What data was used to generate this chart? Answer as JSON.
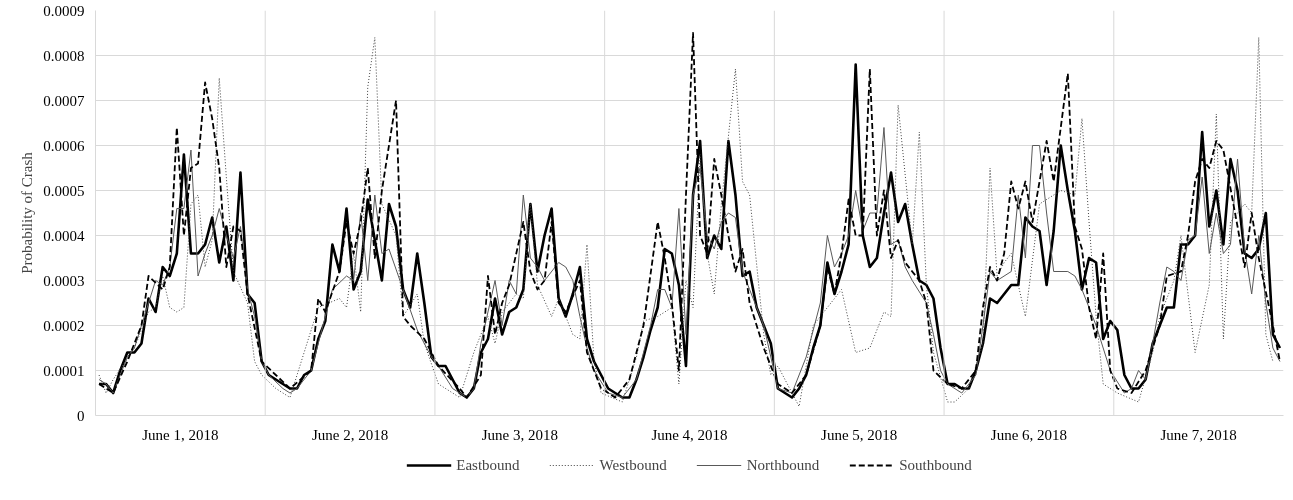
{
  "chart_data": {
    "type": "line",
    "ylabel": "Probability of Crash",
    "legend": "bottom",
    "grid": "y",
    "marker": "none",
    "xlim": [
      "2018-05-31T23:30",
      "2018-06-07T23:30"
    ],
    "xticks": [
      {
        "value": "2018-06-01T11:30",
        "label": "June 1, 2018"
      },
      {
        "value": "2018-06-02T11:30",
        "label": "June 2, 2018"
      },
      {
        "value": "2018-06-03T11:30",
        "label": "June 3, 2018"
      },
      {
        "value": "2018-06-04T11:30",
        "label": "June 4, 2018"
      },
      {
        "value": "2018-06-05T11:30",
        "label": "June 5, 2018"
      },
      {
        "value": "2018-06-06T11:30",
        "label": "June 6, 2018"
      },
      {
        "value": "2018-06-07T11:30",
        "label": "June 7, 2018"
      }
    ],
    "ylim": [
      0,
      0.0009
    ],
    "yticks": [
      0,
      0.0001,
      0.0002,
      0.0003,
      0.0004,
      0.0005,
      0.0006,
      0.0007,
      0.0008,
      0.0009
    ],
    "ref_lines": [
      {
        "axis": "x",
        "value": "2018-06-01T23:30",
        "color": "#d9d9d9"
      },
      {
        "axis": "x",
        "value": "2018-06-02T23:30",
        "color": "#d9d9d9"
      },
      {
        "axis": "x",
        "value": "2018-06-03T23:30",
        "color": "#d9d9d9"
      },
      {
        "axis": "x",
        "value": "2018-06-04T23:30",
        "color": "#d9d9d9"
      },
      {
        "axis": "x",
        "value": "2018-06-05T23:30",
        "color": "#d9d9d9"
      },
      {
        "axis": "x",
        "value": "2018-06-06T23:30",
        "color": "#d9d9d9"
      }
    ],
    "series": [
      {
        "name": "Eastbound",
        "color": "#000000",
        "line_style": "solid",
        "x": [
          "2018-06-01T00:00",
          "2018-06-01T01:00",
          "2018-06-01T02:00",
          "2018-06-01T03:00",
          "2018-06-01T04:00",
          "2018-06-01T05:00",
          "2018-06-01T06:00",
          "2018-06-01T07:00",
          "2018-06-01T08:00",
          "2018-06-01T09:00",
          "2018-06-01T10:00",
          "2018-06-01T11:00",
          "2018-06-01T12:00",
          "2018-06-01T13:00",
          "2018-06-01T14:00",
          "2018-06-01T15:00",
          "2018-06-01T16:00",
          "2018-06-01T17:00",
          "2018-06-01T18:00",
          "2018-06-01T19:00",
          "2018-06-01T20:00",
          "2018-06-01T21:00",
          "2018-06-01T22:00",
          "2018-06-01T23:00",
          "2018-06-02T00:00",
          "2018-06-02T01:00",
          "2018-06-02T02:00",
          "2018-06-02T03:00",
          "2018-06-02T04:00",
          "2018-06-02T05:00",
          "2018-06-02T06:00",
          "2018-06-02T07:00",
          "2018-06-02T08:00",
          "2018-06-02T09:00",
          "2018-06-02T10:00",
          "2018-06-02T11:00",
          "2018-06-02T12:00",
          "2018-06-02T13:00",
          "2018-06-02T14:00",
          "2018-06-02T15:00",
          "2018-06-02T16:00",
          "2018-06-02T17:00",
          "2018-06-02T18:00",
          "2018-06-02T19:00",
          "2018-06-02T20:00",
          "2018-06-02T21:00",
          "2018-06-02T22:00",
          "2018-06-02T23:00",
          "2018-06-03T00:00",
          "2018-06-03T01:00",
          "2018-06-03T02:00",
          "2018-06-03T03:00",
          "2018-06-03T04:00",
          "2018-06-03T05:00",
          "2018-06-03T06:00",
          "2018-06-03T07:00",
          "2018-06-03T08:00",
          "2018-06-03T09:00",
          "2018-06-03T10:00",
          "2018-06-03T11:00",
          "2018-06-03T12:00",
          "2018-06-03T13:00",
          "2018-06-03T14:00",
          "2018-06-03T15:00",
          "2018-06-03T16:00",
          "2018-06-03T17:00",
          "2018-06-03T18:00",
          "2018-06-03T19:00",
          "2018-06-03T20:00",
          "2018-06-03T21:00",
          "2018-06-03T22:00",
          "2018-06-03T23:00",
          "2018-06-04T00:00",
          "2018-06-04T01:00",
          "2018-06-04T02:00",
          "2018-06-04T03:00",
          "2018-06-04T04:00",
          "2018-06-04T05:00",
          "2018-06-04T06:00",
          "2018-06-04T07:00",
          "2018-06-04T08:00",
          "2018-06-04T09:00",
          "2018-06-04T10:00",
          "2018-06-04T11:00",
          "2018-06-04T12:00",
          "2018-06-04T13:00",
          "2018-06-04T14:00",
          "2018-06-04T15:00",
          "2018-06-04T16:00",
          "2018-06-04T17:00",
          "2018-06-04T18:00",
          "2018-06-04T19:00",
          "2018-06-04T20:00",
          "2018-06-04T21:00",
          "2018-06-04T22:00",
          "2018-06-04T23:00",
          "2018-06-05T00:00",
          "2018-06-05T01:00",
          "2018-06-05T02:00",
          "2018-06-05T03:00",
          "2018-06-05T04:00",
          "2018-06-05T05:00",
          "2018-06-05T06:00",
          "2018-06-05T07:00",
          "2018-06-05T08:00",
          "2018-06-05T09:00",
          "2018-06-05T10:00",
          "2018-06-05T11:00",
          "2018-06-05T12:00",
          "2018-06-05T13:00",
          "2018-06-05T14:00",
          "2018-06-05T15:00",
          "2018-06-05T16:00",
          "2018-06-05T17:00",
          "2018-06-05T18:00",
          "2018-06-05T19:00",
          "2018-06-05T20:00",
          "2018-06-05T21:00",
          "2018-06-05T22:00",
          "2018-06-05T23:00",
          "2018-06-06T00:00",
          "2018-06-06T01:00",
          "2018-06-06T02:00",
          "2018-06-06T03:00",
          "2018-06-06T04:00",
          "2018-06-06T05:00",
          "2018-06-06T06:00",
          "2018-06-06T07:00",
          "2018-06-06T08:00",
          "2018-06-06T09:00",
          "2018-06-06T10:00",
          "2018-06-06T11:00",
          "2018-06-06T12:00",
          "2018-06-06T13:00",
          "2018-06-06T14:00",
          "2018-06-06T15:00",
          "2018-06-06T16:00",
          "2018-06-06T17:00",
          "2018-06-06T18:00",
          "2018-06-06T19:00",
          "2018-06-06T20:00",
          "2018-06-06T21:00",
          "2018-06-06T22:00",
          "2018-06-06T23:00",
          "2018-06-07T00:00",
          "2018-06-07T01:00",
          "2018-06-07T02:00",
          "2018-06-07T03:00",
          "2018-06-07T04:00",
          "2018-06-07T05:00",
          "2018-06-07T06:00",
          "2018-06-07T07:00",
          "2018-06-07T08:00",
          "2018-06-07T09:00",
          "2018-06-07T10:00",
          "2018-06-07T11:00",
          "2018-06-07T12:00",
          "2018-06-07T13:00",
          "2018-06-07T14:00",
          "2018-06-07T15:00",
          "2018-06-07T16:00",
          "2018-06-07T17:00",
          "2018-06-07T18:00",
          "2018-06-07T19:00",
          "2018-06-07T20:00",
          "2018-06-07T21:00",
          "2018-06-07T22:00",
          "2018-06-07T23:00"
        ],
        "values": [
          7e-05,
          7e-05,
          5e-05,
          0.0001,
          0.00014,
          0.00014,
          0.00016,
          0.00026,
          0.00023,
          0.00033,
          0.00031,
          0.00036,
          0.00058,
          0.00036,
          0.00036,
          0.00038,
          0.00044,
          0.00034,
          0.00042,
          0.0003,
          0.00054,
          0.00027,
          0.00025,
          0.00012,
          9e-05,
          8e-05,
          7e-05,
          6e-05,
          6e-05,
          9e-05,
          0.0001,
          0.00017,
          0.00021,
          0.00038,
          0.00032,
          0.00046,
          0.00028,
          0.00032,
          0.00048,
          0.00039,
          0.0003,
          0.00047,
          0.00042,
          0.00028,
          0.00024,
          0.00036,
          0.00025,
          0.00013,
          0.00011,
          0.00011,
          8e-05,
          5e-05,
          4e-05,
          6e-05,
          0.00014,
          0.00017,
          0.00026,
          0.00018,
          0.00023,
          0.00024,
          0.00028,
          0.00047,
          0.00032,
          0.0004,
          0.00046,
          0.00026,
          0.00022,
          0.00027,
          0.00033,
          0.00017,
          0.00012,
          9e-05,
          6e-05,
          5e-05,
          4e-05,
          4e-05,
          8e-05,
          0.00013,
          0.00019,
          0.00024,
          0.00037,
          0.00036,
          0.00029,
          0.00011,
          0.00049,
          0.00061,
          0.00035,
          0.0004,
          0.00037,
          0.00061,
          0.00049,
          0.00031,
          0.00032,
          0.00024,
          0.0002,
          0.00016,
          6e-05,
          5e-05,
          4e-05,
          6e-05,
          9e-05,
          0.00015,
          0.0002,
          0.00034,
          0.00027,
          0.00032,
          0.00038,
          0.00078,
          0.0004,
          0.00033,
          0.00035,
          0.00045,
          0.00054,
          0.00043,
          0.00047,
          0.00038,
          0.0003,
          0.00029,
          0.00026,
          0.00015,
          7e-05,
          7e-05,
          6e-05,
          6e-05,
          0.0001,
          0.00016,
          0.00026,
          0.00025,
          0.00027,
          0.00029,
          0.00029,
          0.00044,
          0.00042,
          0.00041,
          0.00029,
          0.00041,
          0.0006,
          0.0005,
          0.00041,
          0.00028,
          0.00035,
          0.00034,
          0.00017,
          0.00021,
          0.00019,
          9e-05,
          6e-05,
          6e-05,
          8e-05,
          0.00016,
          0.0002,
          0.00024,
          0.00024,
          0.00038,
          0.00038,
          0.0004,
          0.00063,
          0.00042,
          0.0005,
          0.00038,
          0.00057,
          0.0005,
          0.00036,
          0.00035,
          0.00037,
          0.00045,
          0.00018,
          0.00015
        ]
      },
      {
        "name": "Westbound",
        "color": "#404040",
        "line_style": "dotted",
        "x": [
          "2018-06-01T00:00",
          "2018-06-01T01:00",
          "2018-06-01T02:00",
          "2018-06-01T05:00",
          "2018-06-01T07:00",
          "2018-06-01T08:00",
          "2018-06-01T09:00",
          "2018-06-01T10:00",
          "2018-06-01T11:00",
          "2018-06-01T12:00",
          "2018-06-01T13:00",
          "2018-06-01T14:00",
          "2018-06-01T15:00",
          "2018-06-01T16:00",
          "2018-06-01T17:00",
          "2018-06-01T18:00",
          "2018-06-01T19:00",
          "2018-06-01T21:00",
          "2018-06-01T22:00",
          "2018-06-01T23:00",
          "2018-06-02T01:00",
          "2018-06-02T03:00",
          "2018-06-02T05:00",
          "2018-06-02T07:00",
          "2018-06-02T10:00",
          "2018-06-02T11:00",
          "2018-06-02T12:00",
          "2018-06-02T13:00",
          "2018-06-02T14:00",
          "2018-06-02T15:00",
          "2018-06-02T16:00",
          "2018-06-02T18:00",
          "2018-06-02T19:00",
          "2018-06-02T21:00",
          "2018-06-02T22:00",
          "2018-06-03T00:00",
          "2018-06-03T03:00",
          "2018-06-03T05:00",
          "2018-06-03T07:00",
          "2018-06-03T08:00",
          "2018-06-03T09:00",
          "2018-06-03T11:00",
          "2018-06-03T12:00",
          "2018-06-03T13:00",
          "2018-06-03T14:00",
          "2018-06-03T16:00",
          "2018-06-03T17:00",
          "2018-06-03T19:00",
          "2018-06-03T20:00",
          "2018-06-03T21:00",
          "2018-06-03T22:00",
          "2018-06-03T23:00",
          "2018-06-04T02:00",
          "2018-06-04T04:00",
          "2018-06-04T05:00",
          "2018-06-04T07:00",
          "2018-06-04T09:00",
          "2018-06-04T10:00",
          "2018-06-04T11:00",
          "2018-06-04T12:00",
          "2018-06-04T13:00",
          "2018-06-04T14:00",
          "2018-06-04T15:00",
          "2018-06-04T16:00",
          "2018-06-04T18:00",
          "2018-06-04T19:00",
          "2018-06-04T20:00",
          "2018-06-04T22:00",
          "2018-06-04T23:00",
          "2018-06-05T00:00",
          "2018-06-05T03:00",
          "2018-06-05T05:00",
          "2018-06-05T09:00",
          "2018-06-05T11:00",
          "2018-06-05T13:00",
          "2018-06-05T15:00",
          "2018-06-05T16:00",
          "2018-06-05T17:00",
          "2018-06-05T19:00",
          "2018-06-05T20:00",
          "2018-06-05T21:00",
          "2018-06-05T22:00",
          "2018-06-06T00:00",
          "2018-06-06T01:00",
          "2018-06-06T03:00",
          "2018-06-06T05:00",
          "2018-06-06T06:00",
          "2018-06-06T07:00",
          "2018-06-06T08:00",
          "2018-06-06T09:00",
          "2018-06-06T11:00",
          "2018-06-06T13:00",
          "2018-06-06T16:00",
          "2018-06-06T18:00",
          "2018-06-06T19:00",
          "2018-06-06T20:00",
          "2018-06-06T21:00",
          "2018-06-06T22:00",
          "2018-06-07T00:00",
          "2018-06-07T03:00",
          "2018-06-07T05:00",
          "2018-06-07T06:00",
          "2018-06-07T08:00",
          "2018-06-07T09:00",
          "2018-06-07T11:00",
          "2018-06-07T13:00",
          "2018-06-07T14:00",
          "2018-06-07T15:00",
          "2018-06-07T16:00",
          "2018-06-07T18:00",
          "2018-06-07T19:00",
          "2018-06-07T20:00",
          "2018-06-07T21:00",
          "2018-06-07T22:00"
        ],
        "values": [
          9e-05,
          5e-05,
          8e-05,
          0.00015,
          0.00023,
          0.00024,
          0.00031,
          0.00024,
          0.00023,
          0.00024,
          0.00047,
          0.00049,
          0.00033,
          0.00039,
          0.00075,
          0.00053,
          0.00032,
          0.00025,
          0.00012,
          9e-05,
          6e-05,
          4e-05,
          0.00014,
          0.00024,
          0.00026,
          0.00024,
          0.00036,
          0.00023,
          0.00073,
          0.00084,
          0.00047,
          0.0004,
          0.00022,
          0.00027,
          0.00016,
          7e-05,
          4e-05,
          0.00014,
          0.00022,
          0.00016,
          0.00023,
          0.00027,
          0.00026,
          0.00047,
          0.00029,
          0.00022,
          0.00026,
          0.00018,
          0.00017,
          0.00038,
          0.00012,
          5e-05,
          3e-05,
          0.00013,
          0.00021,
          0.00022,
          0.00024,
          7e-05,
          0.0003,
          0.00024,
          0.00058,
          0.00036,
          0.00027,
          0.00047,
          0.00077,
          0.00052,
          0.00049,
          0.00018,
          9e-05,
          0.00011,
          2e-05,
          0.0002,
          0.00028,
          0.00014,
          0.00015,
          0.00023,
          0.00022,
          0.00069,
          0.00038,
          0.00063,
          0.00029,
          0.00014,
          3e-05,
          3e-05,
          6e-05,
          0.00016,
          0.00055,
          0.00031,
          0.00034,
          0.00036,
          0.00022,
          0.00047,
          0.0005,
          0.00049,
          0.00066,
          0.00043,
          0.00022,
          7e-05,
          5e-05,
          3e-05,
          0.00014,
          0.00022,
          0.0003,
          0.0004,
          0.00014,
          0.00029,
          0.00067,
          0.00017,
          0.00043,
          0.00047,
          0.00045,
          0.00084,
          0.00018,
          0.00012
        ]
      },
      {
        "name": "Northbound",
        "color": "#595959",
        "line_style": "solid",
        "x": [
          "2018-06-01T00:00",
          "2018-06-01T01:00",
          "2018-06-01T02:00",
          "2018-06-01T04:00",
          "2018-06-01T05:00",
          "2018-06-01T07:00",
          "2018-06-01T08:00",
          "2018-06-01T09:00",
          "2018-06-01T10:00",
          "2018-06-01T11:00",
          "2018-06-01T12:00",
          "2018-06-01T13:00",
          "2018-06-01T14:00",
          "2018-06-01T15:00",
          "2018-06-01T16:00",
          "2018-06-01T17:00",
          "2018-06-01T18:00",
          "2018-06-01T19:00",
          "2018-06-01T20:00",
          "2018-06-01T21:00",
          "2018-06-01T22:00",
          "2018-06-01T23:00",
          "2018-06-02T00:00",
          "2018-06-02T02:00",
          "2018-06-02T03:00",
          "2018-06-02T04:00",
          "2018-06-02T06:00",
          "2018-06-02T08:00",
          "2018-06-02T09:00",
          "2018-06-02T11:00",
          "2018-06-02T12:00",
          "2018-06-02T13:00",
          "2018-06-02T14:00",
          "2018-06-02T15:00",
          "2018-06-02T16:00",
          "2018-06-02T17:00",
          "2018-06-02T19:00",
          "2018-06-02T21:00",
          "2018-06-02T23:00",
          "2018-06-03T00:00",
          "2018-06-03T02:00",
          "2018-06-03T04:00",
          "2018-06-03T05:00",
          "2018-06-03T06:00",
          "2018-06-03T08:00",
          "2018-06-03T09:00",
          "2018-06-03T10:00",
          "2018-06-03T11:00",
          "2018-06-03T12:00",
          "2018-06-03T13:00",
          "2018-06-03T14:00",
          "2018-06-03T15:00",
          "2018-06-03T17:00",
          "2018-06-03T18:00",
          "2018-06-03T19:00",
          "2018-06-03T20:00",
          "2018-06-03T21:00",
          "2018-06-03T22:00",
          "2018-06-04T00:00",
          "2018-06-04T02:00",
          "2018-06-04T04:00",
          "2018-06-04T06:00",
          "2018-06-04T07:00",
          "2018-06-04T08:00",
          "2018-06-04T09:00",
          "2018-06-04T10:00",
          "2018-06-04T11:00",
          "2018-06-04T12:00",
          "2018-06-04T13:00",
          "2018-06-04T14:00",
          "2018-06-04T15:00",
          "2018-06-04T16:00",
          "2018-06-04T17:00",
          "2018-06-04T18:00",
          "2018-06-04T19:00",
          "2018-06-04T20:00",
          "2018-06-04T22:00",
          "2018-06-05T00:00",
          "2018-06-05T02:00",
          "2018-06-05T04:00",
          "2018-06-05T06:00",
          "2018-06-05T07:00",
          "2018-06-05T08:00",
          "2018-06-05T09:00",
          "2018-06-05T10:00",
          "2018-06-05T11:00",
          "2018-06-05T12:00",
          "2018-06-05T13:00",
          "2018-06-05T14:00",
          "2018-06-05T15:00",
          "2018-06-05T16:00",
          "2018-06-05T17:00",
          "2018-06-05T18:00",
          "2018-06-05T19:00",
          "2018-06-05T21:00",
          "2018-06-05T22:00",
          "2018-06-05T23:00",
          "2018-06-06T00:00",
          "2018-06-06T02:00",
          "2018-06-06T04:00",
          "2018-06-06T05:00",
          "2018-06-06T06:00",
          "2018-06-06T07:00",
          "2018-06-06T09:00",
          "2018-06-06T10:00",
          "2018-06-06T11:00",
          "2018-06-06T12:00",
          "2018-06-06T13:00",
          "2018-06-06T14:00",
          "2018-06-06T15:00",
          "2018-06-06T17:00",
          "2018-06-06T18:00",
          "2018-06-06T19:00",
          "2018-06-06T21:00",
          "2018-06-06T22:00",
          "2018-06-06T23:00",
          "2018-06-07T01:00",
          "2018-06-07T02:00",
          "2018-06-07T03:00",
          "2018-06-07T04:00",
          "2018-06-07T05:00",
          "2018-06-07T06:00",
          "2018-06-07T07:00",
          "2018-06-07T08:00",
          "2018-06-07T09:00",
          "2018-06-07T10:00",
          "2018-06-07T11:00",
          "2018-06-07T12:00",
          "2018-06-07T13:00",
          "2018-06-07T14:00",
          "2018-06-07T15:00",
          "2018-06-07T16:00",
          "2018-06-07T17:00",
          "2018-06-07T18:00",
          "2018-06-07T19:00",
          "2018-06-07T20:00",
          "2018-06-07T21:00",
          "2018-06-07T22:00",
          "2018-06-07T23:00"
        ],
        "values": [
          8e-05,
          7e-05,
          5e-05,
          0.00013,
          0.00015,
          0.00025,
          0.0003,
          0.00029,
          0.00033,
          0.00046,
          0.00046,
          0.00059,
          0.00031,
          0.00036,
          0.0004,
          0.00046,
          0.0004,
          0.00035,
          0.00042,
          0.00028,
          0.00022,
          0.00012,
          9e-05,
          6e-05,
          5e-05,
          6e-05,
          0.0001,
          0.00022,
          0.00028,
          0.00031,
          0.0003,
          0.00045,
          0.0003,
          0.00049,
          0.00036,
          0.00037,
          0.00028,
          0.00019,
          0.00013,
          0.00011,
          6e-05,
          4e-05,
          6e-05,
          0.00016,
          0.0003,
          0.0002,
          0.0003,
          0.00027,
          0.00049,
          0.00035,
          0.00033,
          0.0003,
          0.00034,
          0.00033,
          0.0003,
          0.00022,
          0.00015,
          0.0001,
          5e-05,
          4e-05,
          8e-05,
          0.0002,
          0.00028,
          0.00028,
          0.00024,
          0.00046,
          0.00018,
          0.00049,
          0.00055,
          0.0004,
          0.00037,
          0.00043,
          0.00045,
          0.00044,
          0.00032,
          0.00028,
          0.0002,
          6e-05,
          5e-05,
          0.00013,
          0.00025,
          0.0004,
          0.00033,
          0.00036,
          0.0004,
          0.0005,
          0.00041,
          0.00045,
          0.00045,
          0.00064,
          0.00038,
          0.00039,
          0.00033,
          0.0003,
          0.00025,
          0.00018,
          0.0001,
          7e-05,
          5e-05,
          9e-05,
          0.0002,
          0.00032,
          0.0003,
          0.00032,
          0.00049,
          0.00035,
          0.0006,
          0.0006,
          0.00045,
          0.00032,
          0.00032,
          0.00031,
          0.00028,
          0.0002,
          0.00015,
          0.0001,
          5e-05,
          6e-05,
          0.0001,
          8e-05,
          0.00016,
          0.00025,
          0.00033,
          0.00032,
          0.0003,
          0.00039,
          0.0004,
          0.00053,
          0.00036,
          0.00045,
          0.00036,
          0.00038,
          0.00057,
          0.00037,
          0.00027,
          0.0004,
          0.00025,
          0.00015,
          0.00012
        ]
      },
      {
        "name": "Southbound",
        "color": "#000000",
        "line_style": "dashed",
        "x": [
          "2018-06-01T00:00",
          "2018-06-01T02:00",
          "2018-06-01T04:00",
          "2018-06-01T06:00",
          "2018-06-01T07:00",
          "2018-06-01T09:00",
          "2018-06-01T10:00",
          "2018-06-01T11:00",
          "2018-06-01T12:00",
          "2018-06-01T13:00",
          "2018-06-01T14:00",
          "2018-06-01T15:00",
          "2018-06-01T16:00",
          "2018-06-01T17:00",
          "2018-06-01T18:00",
          "2018-06-01T19:00",
          "2018-06-01T20:00",
          "2018-06-01T21:00",
          "2018-06-01T23:00",
          "2018-06-02T01:00",
          "2018-06-02T03:00",
          "2018-06-02T06:00",
          "2018-06-02T07:00",
          "2018-06-02T08:00",
          "2018-06-02T10:00",
          "2018-06-02T11:00",
          "2018-06-02T12:00",
          "2018-06-02T13:00",
          "2018-06-02T14:00",
          "2018-06-02T15:00",
          "2018-06-02T16:00",
          "2018-06-02T18:00",
          "2018-06-02T19:00",
          "2018-06-02T20:00",
          "2018-06-02T22:00",
          "2018-06-03T00:00",
          "2018-06-03T03:00",
          "2018-06-03T04:00",
          "2018-06-03T06:00",
          "2018-06-03T07:00",
          "2018-06-03T08:00",
          "2018-06-03T09:00",
          "2018-06-03T10:00",
          "2018-06-03T12:00",
          "2018-06-03T13:00",
          "2018-06-03T14:00",
          "2018-06-03T15:00",
          "2018-06-03T16:00",
          "2018-06-03T17:00",
          "2018-06-03T18:00",
          "2018-06-03T20:00",
          "2018-06-03T21:00",
          "2018-06-03T23:00",
          "2018-06-04T01:00",
          "2018-06-04T03:00",
          "2018-06-04T05:00",
          "2018-06-04T07:00",
          "2018-06-04T08:00",
          "2018-06-04T09:00",
          "2018-06-04T10:00",
          "2018-06-04T11:00",
          "2018-06-04T12:00",
          "2018-06-04T13:00",
          "2018-06-04T14:00",
          "2018-06-04T15:00",
          "2018-06-04T16:00",
          "2018-06-04T17:00",
          "2018-06-04T18:00",
          "2018-06-04T19:00",
          "2018-06-04T20:00",
          "2018-06-04T22:00",
          "2018-06-05T00:00",
          "2018-06-05T02:00",
          "2018-06-05T04:00",
          "2018-06-05T06:00",
          "2018-06-05T07:00",
          "2018-06-05T08:00",
          "2018-06-05T09:00",
          "2018-06-05T10:00",
          "2018-06-05T11:00",
          "2018-06-05T12:00",
          "2018-06-05T13:00",
          "2018-06-05T14:00",
          "2018-06-05T15:00",
          "2018-06-05T16:00",
          "2018-06-05T17:00",
          "2018-06-05T18:00",
          "2018-06-05T20:00",
          "2018-06-05T21:00",
          "2018-06-05T22:00",
          "2018-06-06T00:00",
          "2018-06-06T02:00",
          "2018-06-06T04:00",
          "2018-06-06T05:00",
          "2018-06-06T06:00",
          "2018-06-06T07:00",
          "2018-06-06T08:00",
          "2018-06-06T09:00",
          "2018-06-06T10:00",
          "2018-06-06T11:00",
          "2018-06-06T12:00",
          "2018-06-06T13:00",
          "2018-06-06T14:00",
          "2018-06-06T15:00",
          "2018-06-06T17:00",
          "2018-06-06T18:00",
          "2018-06-06T19:00",
          "2018-06-06T20:00",
          "2018-06-06T21:00",
          "2018-06-06T22:00",
          "2018-06-06T23:00",
          "2018-06-07T00:00",
          "2018-06-07T02:00",
          "2018-06-07T04:00",
          "2018-06-07T06:00",
          "2018-06-07T07:00",
          "2018-06-07T09:00",
          "2018-06-07T10:00",
          "2018-06-07T11:00",
          "2018-06-07T12:00",
          "2018-06-07T13:00",
          "2018-06-07T14:00",
          "2018-06-07T15:00",
          "2018-06-07T17:00",
          "2018-06-07T18:00",
          "2018-06-07T19:00",
          "2018-06-07T20:00",
          "2018-06-07T22:00",
          "2018-06-07T23:00"
        ],
        "values": [
          7e-05,
          5e-05,
          0.00012,
          0.0002,
          0.00031,
          0.00028,
          0.00033,
          0.00064,
          0.0004,
          0.00055,
          0.00056,
          0.00074,
          0.00066,
          0.00055,
          0.00033,
          0.00042,
          0.00041,
          0.00027,
          0.00012,
          9e-05,
          6e-05,
          0.0001,
          0.00026,
          0.00023,
          0.00032,
          0.00043,
          0.00036,
          0.00043,
          0.00055,
          0.00035,
          0.0005,
          0.0007,
          0.00022,
          0.0002,
          0.00017,
          0.00011,
          6e-05,
          4e-05,
          9e-05,
          0.00031,
          0.00018,
          0.00025,
          0.00029,
          0.00043,
          0.00032,
          0.00028,
          0.0003,
          0.00043,
          0.00025,
          0.00023,
          0.0003,
          0.00014,
          6e-05,
          4e-05,
          8e-05,
          0.0002,
          0.00043,
          0.00035,
          0.00025,
          0.0001,
          0.00049,
          0.00085,
          0.0004,
          0.00036,
          0.00057,
          0.00049,
          0.0004,
          0.00032,
          0.00037,
          0.00025,
          0.00015,
          7e-05,
          5e-05,
          9e-05,
          0.0002,
          0.00033,
          0.00027,
          0.00036,
          0.00048,
          0.0004,
          0.0004,
          0.00077,
          0.0004,
          0.0005,
          0.00035,
          0.00039,
          0.00034,
          0.0003,
          0.00025,
          0.0001,
          7e-05,
          6e-05,
          0.0001,
          0.00024,
          0.00033,
          0.0003,
          0.00036,
          0.00052,
          0.00046,
          0.00052,
          0.00043,
          0.00052,
          0.00061,
          0.00052,
          0.00076,
          0.00042,
          0.00037,
          0.00024,
          0.00017,
          0.00036,
          0.0001,
          6e-05,
          5e-05,
          0.0001,
          0.0002,
          0.00031,
          0.00032,
          0.0004,
          0.00052,
          0.00057,
          0.00055,
          0.00061,
          0.00059,
          0.00042,
          0.00033,
          0.00045,
          0.00035,
          0.0002,
          0.00012
        ]
      }
    ]
  }
}
